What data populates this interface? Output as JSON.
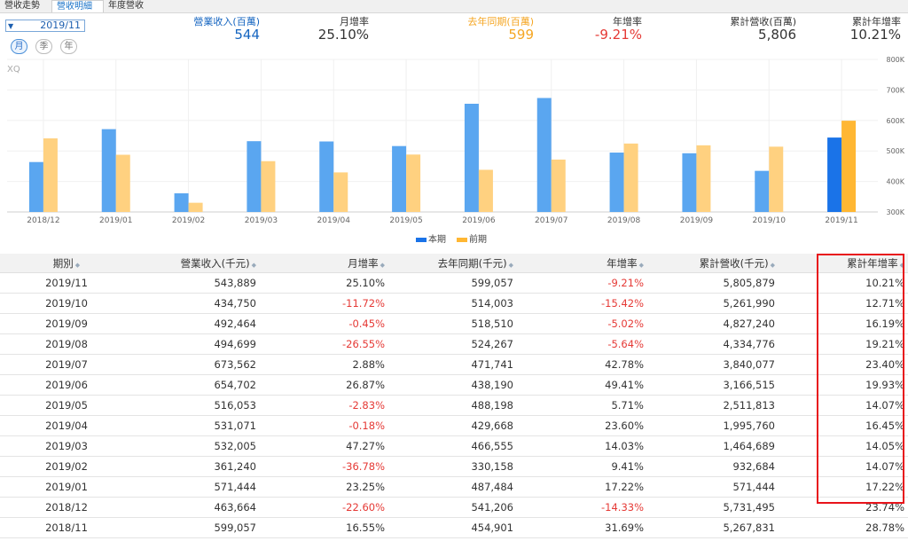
{
  "tabs": [
    "營收走勢",
    "營收明細",
    "年度營收"
  ],
  "active_tab": 1,
  "date_selector": "2019/11",
  "period_buttons": [
    "月",
    "季",
    "年"
  ],
  "summary": [
    {
      "label": "營業收入(百萬)",
      "value": "544",
      "label_color": "#1565c0",
      "value_color": "#1565c0"
    },
    {
      "label": "月增率",
      "value": "25.10%",
      "label_color": "#333333",
      "value_color": "#333333"
    },
    {
      "label": "去年同期(百萬)",
      "value": "599",
      "label_color": "#f5a623",
      "value_color": "#f5a623"
    },
    {
      "label": "年增率",
      "value": "-9.21%",
      "label_color": "#333333",
      "value_color": "#e53935"
    },
    {
      "label": "累計營收(百萬)",
      "value": "5,806",
      "label_color": "#333333",
      "value_color": "#333333"
    },
    {
      "label": "累計年增率",
      "value": "10.21%",
      "label_color": "#333333",
      "value_color": "#333333"
    }
  ],
  "brand": "XQ",
  "chart_data": {
    "type": "bar",
    "categories": [
      "2018/12",
      "2019/01",
      "2019/02",
      "2019/03",
      "2019/04",
      "2019/05",
      "2019/06",
      "2019/07",
      "2019/08",
      "2019/09",
      "2019/10",
      "2019/11"
    ],
    "series": [
      {
        "name": "本期",
        "values": [
          463664,
          571444,
          361240,
          532005,
          531071,
          516053,
          654702,
          673562,
          494699,
          492464,
          434750,
          543889
        ]
      },
      {
        "name": "前期",
        "values": [
          541206,
          487484,
          330158,
          466555,
          429668,
          488198,
          438190,
          471741,
          524267,
          518510,
          514003,
          599057
        ]
      }
    ],
    "y_ticks": [
      "300K",
      "400K",
      "500K",
      "600K",
      "700K",
      "800K"
    ],
    "ylim": [
      300000,
      800000
    ],
    "legend_position": "bottom",
    "colors": {
      "current": "#5aa6f0",
      "previous": "#ffd180",
      "current_selected": "#1a73e8",
      "previous_selected": "#ffb733"
    }
  },
  "table": {
    "headers": [
      "期別",
      "營業收入(千元)",
      "月增率",
      "去年同期(千元)",
      "年增率",
      "累計營收(千元)",
      "累計年增率"
    ],
    "rows": [
      [
        "2019/11",
        "543,889",
        "25.10%",
        "599,057",
        "-9.21%",
        "5,805,879",
        "10.21%"
      ],
      [
        "2019/10",
        "434,750",
        "-11.72%",
        "514,003",
        "-15.42%",
        "5,261,990",
        "12.71%"
      ],
      [
        "2019/09",
        "492,464",
        "-0.45%",
        "518,510",
        "-5.02%",
        "4,827,240",
        "16.19%"
      ],
      [
        "2019/08",
        "494,699",
        "-26.55%",
        "524,267",
        "-5.64%",
        "4,334,776",
        "19.21%"
      ],
      [
        "2019/07",
        "673,562",
        "2.88%",
        "471,741",
        "42.78%",
        "3,840,077",
        "23.40%"
      ],
      [
        "2019/06",
        "654,702",
        "26.87%",
        "438,190",
        "49.41%",
        "3,166,515",
        "19.93%"
      ],
      [
        "2019/05",
        "516,053",
        "-2.83%",
        "488,198",
        "5.71%",
        "2,511,813",
        "14.07%"
      ],
      [
        "2019/04",
        "531,071",
        "-0.18%",
        "429,668",
        "23.60%",
        "1,995,760",
        "16.45%"
      ],
      [
        "2019/03",
        "532,005",
        "47.27%",
        "466,555",
        "14.03%",
        "1,464,689",
        "14.05%"
      ],
      [
        "2019/02",
        "361,240",
        "-36.78%",
        "330,158",
        "9.41%",
        "932,684",
        "14.07%"
      ],
      [
        "2019/01",
        "571,444",
        "23.25%",
        "487,484",
        "17.22%",
        "571,444",
        "17.22%"
      ],
      [
        "2018/12",
        "463,664",
        "-22.60%",
        "541,206",
        "-14.33%",
        "5,731,495",
        "23.74%"
      ],
      [
        "2018/11",
        "599,057",
        "16.55%",
        "454,901",
        "31.69%",
        "5,267,831",
        "28.78%"
      ]
    ],
    "highlight_color": "#e8141b"
  }
}
